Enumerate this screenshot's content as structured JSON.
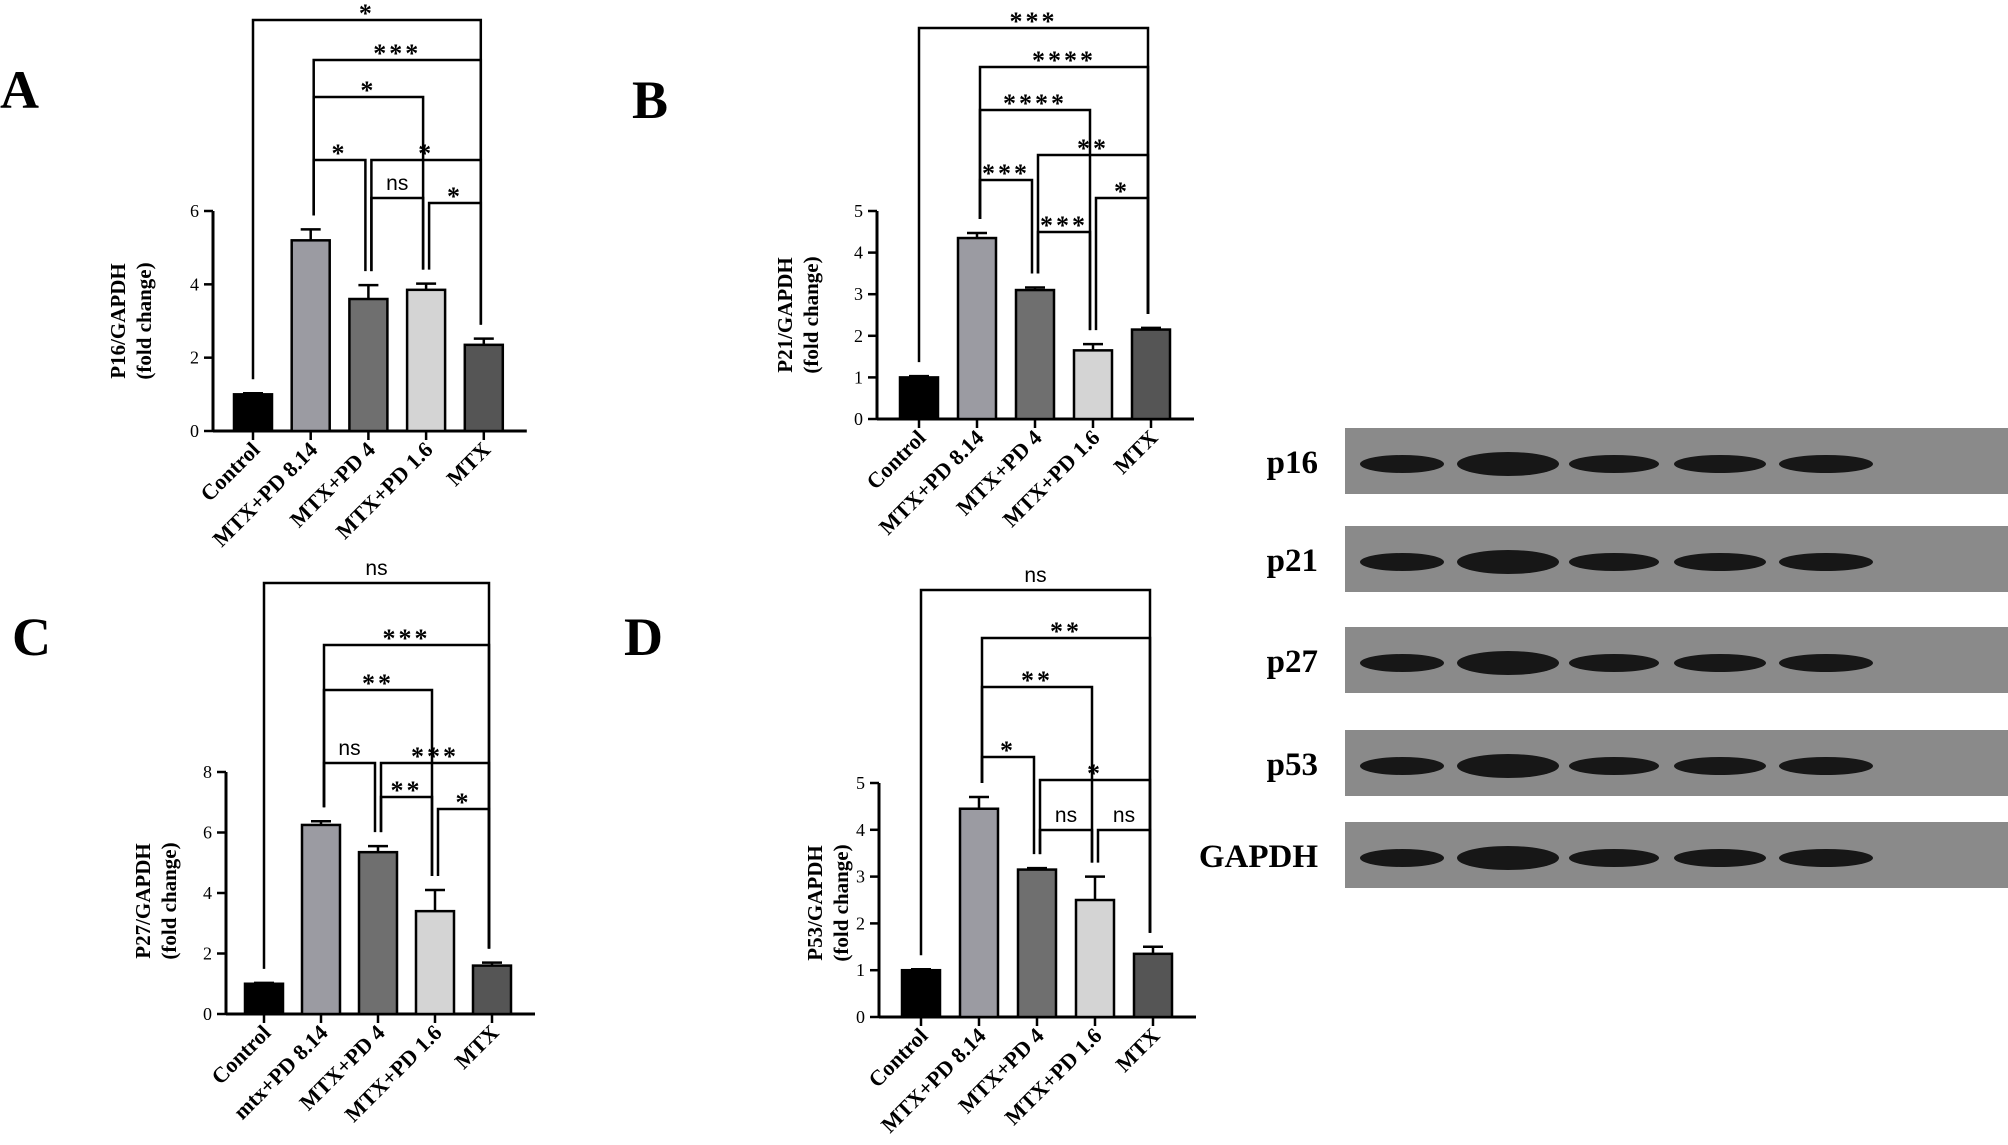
{
  "panels": [
    "A",
    "B",
    "C",
    "D"
  ],
  "chart_data": [
    {
      "panel": "A",
      "type": "bar",
      "ylabel_line1": "P16/GAPDH",
      "ylabel_line2": "(fold change)",
      "categories": [
        "Control",
        "MTX+PD 8.14",
        "MTX+PD 4",
        "MTX+PD 1.6",
        "MTX"
      ],
      "values": [
        1.0,
        5.2,
        3.6,
        3.85,
        2.35
      ],
      "errors": [
        0.03,
        0.3,
        0.38,
        0.17,
        0.17
      ],
      "ylim": [
        0,
        6
      ],
      "yticks": [
        0,
        2,
        4,
        6
      ],
      "colors": [
        "#000000",
        "#9b9ba2",
        "#6f6f6f",
        "#d4d4d4",
        "#555555"
      ],
      "comparisons": [
        {
          "from": 0,
          "to": 4,
          "label": "*"
        },
        {
          "from": 1,
          "to": 4,
          "label": "***"
        },
        {
          "from": 1,
          "to": 3,
          "label": "*"
        },
        {
          "from": 1,
          "to": 2,
          "label": "*"
        },
        {
          "from": 2,
          "to": 4,
          "label": "*"
        },
        {
          "from": 2,
          "to": 3,
          "label": "ns"
        },
        {
          "from": 3,
          "to": 4,
          "label": "*"
        }
      ]
    },
    {
      "panel": "B",
      "type": "bar",
      "ylabel_line1": "P21/GAPDH",
      "ylabel_line2": "(fold change)",
      "categories": [
        "Control",
        "MTX+PD 8.14",
        "MTX+PD 4",
        "MTX+PD 1.6",
        "MTX"
      ],
      "values": [
        1.0,
        4.35,
        3.1,
        1.65,
        2.15
      ],
      "errors": [
        0.03,
        0.12,
        0.06,
        0.15,
        0.04
      ],
      "ylim": [
        0,
        5
      ],
      "yticks": [
        0,
        1,
        2,
        3,
        4,
        5
      ],
      "colors": [
        "#000000",
        "#9b9ba2",
        "#6f6f6f",
        "#d4d4d4",
        "#555555"
      ],
      "comparisons": [
        {
          "from": 0,
          "to": 4,
          "label": "***"
        },
        {
          "from": 1,
          "to": 4,
          "label": "****"
        },
        {
          "from": 1,
          "to": 3,
          "label": "****"
        },
        {
          "from": 2,
          "to": 4,
          "label": "**"
        },
        {
          "from": 1,
          "to": 2,
          "label": "***"
        },
        {
          "from": 3,
          "to": 4,
          "label": "*"
        },
        {
          "from": 2,
          "to": 3,
          "label": "***"
        }
      ]
    },
    {
      "panel": "C",
      "type": "bar",
      "ylabel_line1": "P27/GAPDH",
      "ylabel_line2": "(fold change)",
      "categories": [
        "Control",
        "mtx+PD 8.14",
        "MTX+PD 4",
        "MTX+PD 1.6",
        "MTX"
      ],
      "values": [
        1.0,
        6.25,
        5.35,
        3.4,
        1.6
      ],
      "errors": [
        0.03,
        0.12,
        0.2,
        0.7,
        0.1
      ],
      "ylim": [
        0,
        8
      ],
      "yticks": [
        0,
        2,
        4,
        6,
        8
      ],
      "colors": [
        "#000000",
        "#9b9ba2",
        "#6f6f6f",
        "#d4d4d4",
        "#555555"
      ],
      "comparisons": [
        {
          "from": 0,
          "to": 4,
          "label": "ns"
        },
        {
          "from": 1,
          "to": 4,
          "label": "***"
        },
        {
          "from": 1,
          "to": 3,
          "label": "**"
        },
        {
          "from": 1,
          "to": 2,
          "label": "ns"
        },
        {
          "from": 2,
          "to": 4,
          "label": "***"
        },
        {
          "from": 2,
          "to": 3,
          "label": "**"
        },
        {
          "from": 3,
          "to": 4,
          "label": "*"
        }
      ]
    },
    {
      "panel": "D",
      "type": "bar",
      "ylabel_line1": "P53/GAPDH",
      "ylabel_line2": "(fold change)",
      "categories": [
        "Control",
        "MTX+PD 8.14",
        "MTX+PD 4",
        "MTX+PD 1.6",
        "MTX"
      ],
      "values": [
        1.0,
        4.45,
        3.15,
        2.5,
        1.35
      ],
      "errors": [
        0.02,
        0.25,
        0.03,
        0.5,
        0.15
      ],
      "ylim": [
        0,
        5
      ],
      "yticks": [
        0,
        1,
        2,
        3,
        4,
        5
      ],
      "colors": [
        "#000000",
        "#9b9ba2",
        "#6f6f6f",
        "#d4d4d4",
        "#555555"
      ],
      "comparisons": [
        {
          "from": 0,
          "to": 4,
          "label": "ns"
        },
        {
          "from": 1,
          "to": 4,
          "label": "**"
        },
        {
          "from": 1,
          "to": 3,
          "label": "**"
        },
        {
          "from": 1,
          "to": 2,
          "label": "*"
        },
        {
          "from": 2,
          "to": 4,
          "label": "*"
        },
        {
          "from": 2,
          "to": 3,
          "label": "ns"
        },
        {
          "from": 3,
          "to": 4,
          "label": "ns"
        }
      ]
    }
  ],
  "western_blot": {
    "labels": [
      "p16",
      "p21",
      "p27",
      "p53",
      "GAPDH"
    ],
    "lanes": 5,
    "background": "#8a8a8a",
    "band_color": "#0d0d0d"
  }
}
